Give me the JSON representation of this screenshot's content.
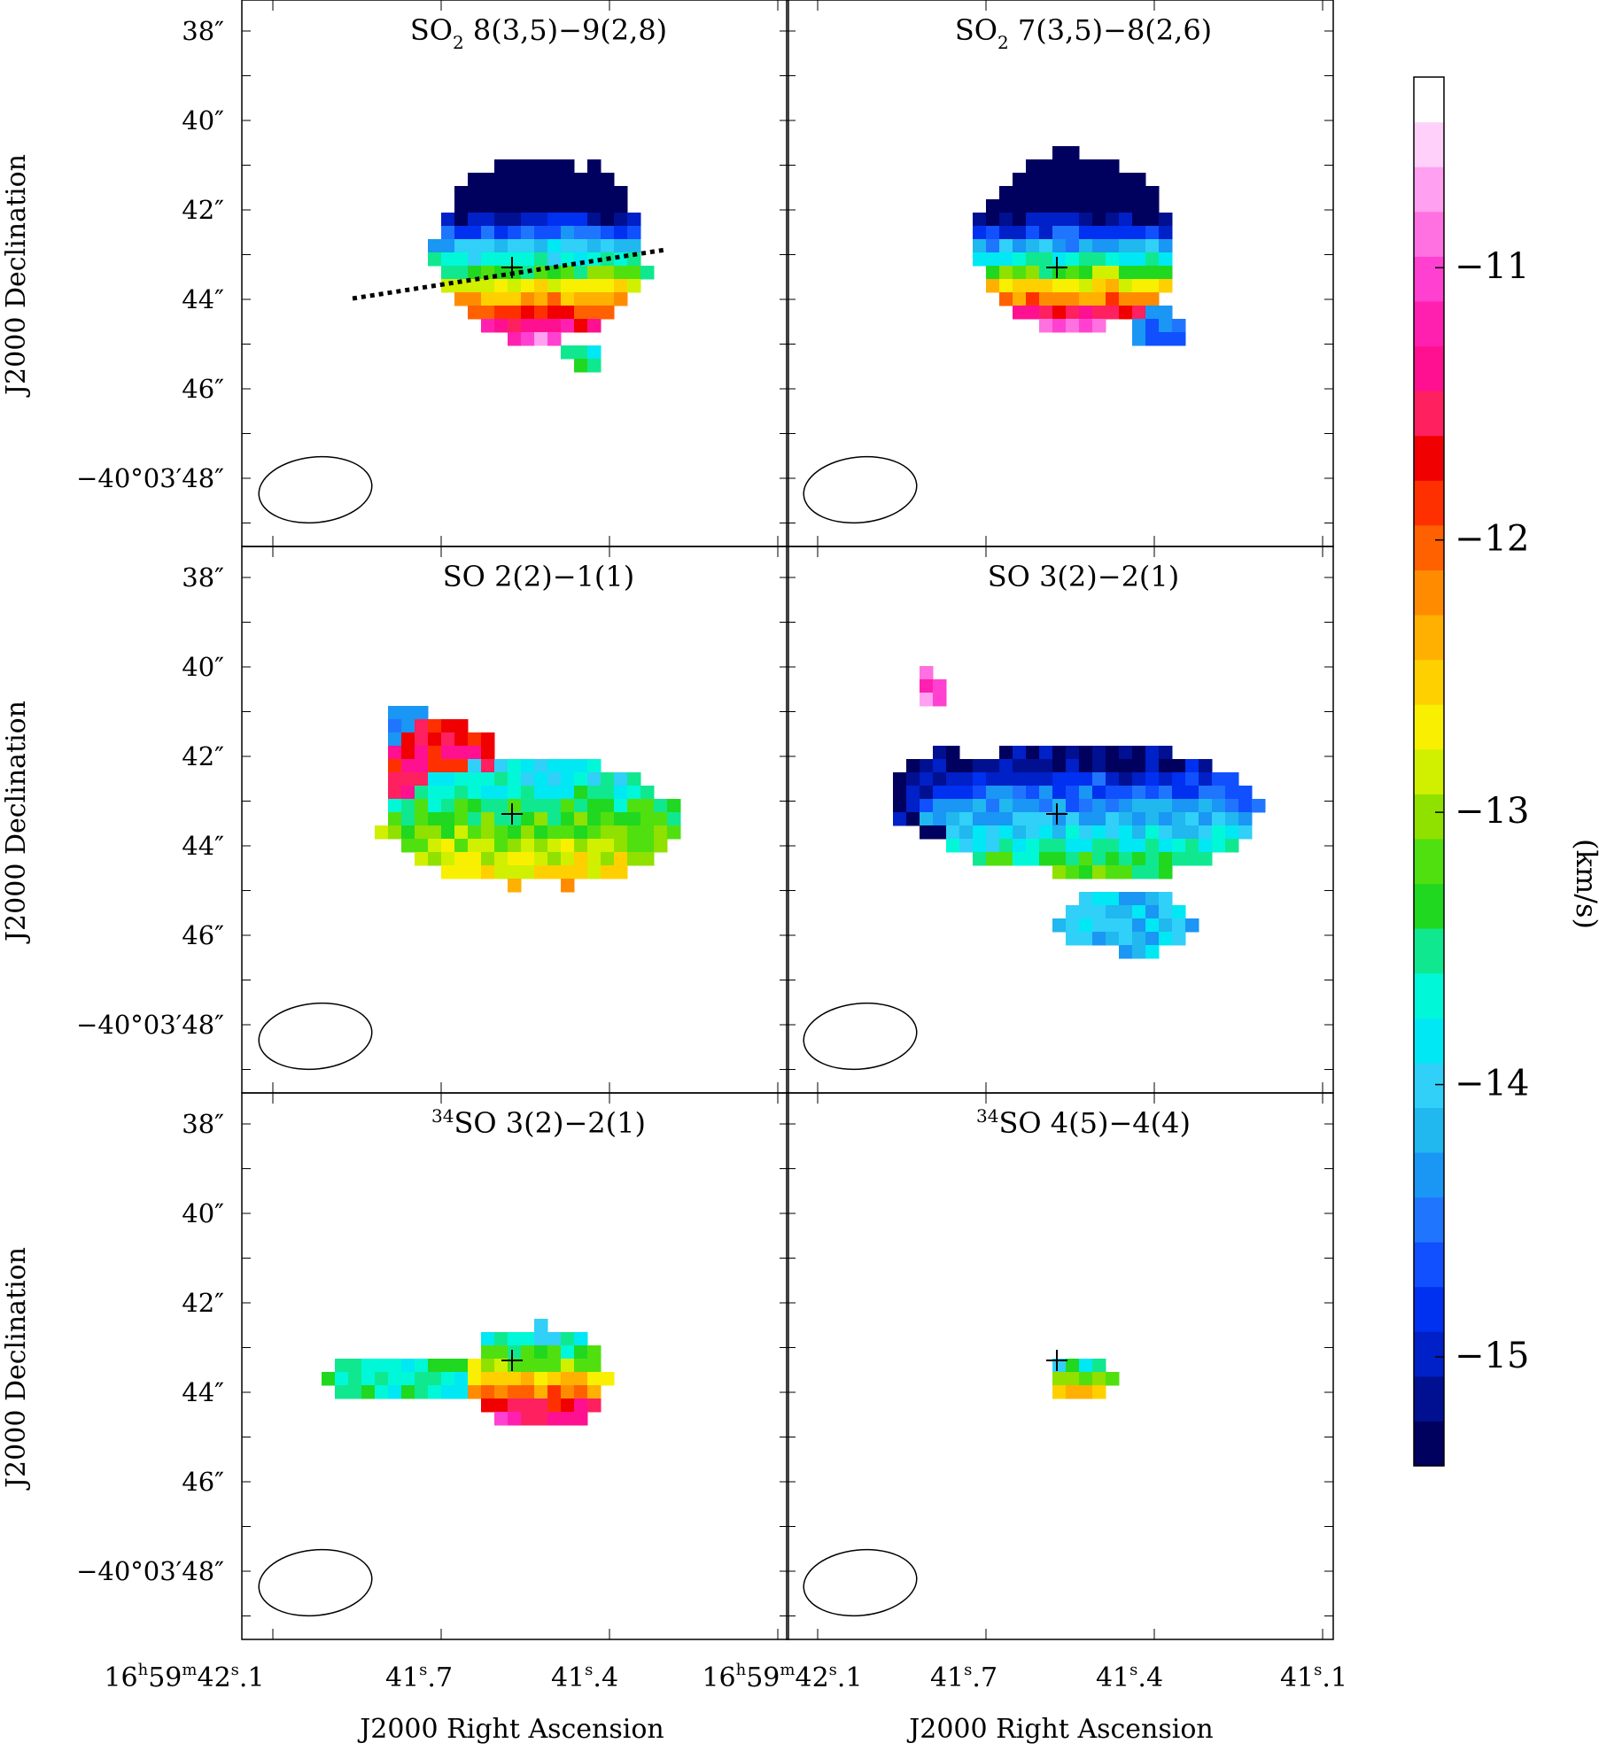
{
  "chart_data": {
    "type": "heatmap",
    "panels": [
      {
        "title_prefix": "",
        "title_sup": "",
        "title_main": "SO",
        "title_sub": "2",
        "title_rest": " 8(3,5)−9(2,8)",
        "has_cut_line": true,
        "blobs": [
          {
            "cx": 42.9,
            "cy": -0.45,
            "rx": 1.85,
            "ry": 2.1,
            "base_v": -14.0,
            "grad_v_per_arcsec": 1.4,
            "vy0": -0.45
          },
          {
            "cx": 45.3,
            "cy": -1.2,
            "rx": 0.45,
            "ry": 0.2,
            "base_v": -13.5,
            "grad_v_per_arcsec": 0.0,
            "vy0": -1.2
          }
        ]
      },
      {
        "title_prefix": "",
        "title_sup": "",
        "title_main": "SO",
        "title_sub": "2",
        "title_rest": " 7(3,5)−8(2,6)",
        "has_cut_line": false,
        "blobs": [
          {
            "cx": 42.7,
            "cy": -0.3,
            "rx": 1.75,
            "ry": 2.0,
            "base_v": -14.4,
            "grad_v_per_arcsec": 1.6,
            "vy0": -0.5
          },
          {
            "cx": 44.7,
            "cy": -1.8,
            "rx": 0.55,
            "ry": 0.45,
            "base_v": -14.5,
            "grad_v_per_arcsec": 0.0,
            "vy0": -1.8
          }
        ]
      },
      {
        "title_prefix": "",
        "title_sup": "",
        "title_main": "SO 2(2)−1(1)",
        "title_sub": "",
        "title_rest": "",
        "has_cut_line": false,
        "blobs": [
          {
            "cx": 43.5,
            "cy": -0.3,
            "rx": 2.6,
            "ry": 1.4,
            "base_v": -13.2,
            "grad_v_per_arcsec": 0.5,
            "vy0": -0.3
          },
          {
            "cx": 42.3,
            "cy": 1.2,
            "rx": 1.0,
            "ry": 1.1,
            "base_v": -11.6,
            "grad_v_per_arcsec": 0.0,
            "vy0": 1.2
          },
          {
            "cx": 41.4,
            "cy": 1.8,
            "rx": 0.45,
            "ry": 0.5,
            "base_v": -14.3,
            "grad_v_per_arcsec": 0.0,
            "vy0": 1.8
          }
        ]
      },
      {
        "title_prefix": "",
        "title_sup": "",
        "title_main": "SO 3(2)−2(1)",
        "title_sub": "",
        "title_rest": "",
        "has_cut_line": false,
        "blobs": [
          {
            "cx": 43.2,
            "cy": -0.6,
            "rx": 2.9,
            "ry": 1.5,
            "base_v": -14.3,
            "grad_v_per_arcsec": 0.7,
            "vy0": -0.6
          },
          {
            "cx": 45.7,
            "cy": -1.2,
            "rx": 1.2,
            "ry": 0.7,
            "base_v": -14.1,
            "grad_v_per_arcsec": 0.0,
            "vy0": -1.2
          },
          {
            "cx": 40.5,
            "cy": 2.2,
            "rx": 0.2,
            "ry": 0.45,
            "base_v": -11.0,
            "grad_v_per_arcsec": 0.0,
            "vy0": 2.2
          },
          {
            "cx": 42.9,
            "cy": 1.9,
            "rx": 1.0,
            "ry": 1.0,
            "base_v": -15.2,
            "grad_v_per_arcsec": 0.0,
            "vy0": 1.9
          },
          {
            "cx": 44.0,
            "cy": 0.0,
            "rx": 0.5,
            "ry": 0.6,
            "base_v": -11.5,
            "grad_v_per_arcsec": 0.0,
            "vy0": 0.0
          }
        ]
      },
      {
        "title_prefix": "",
        "title_sup": "34",
        "title_main": "SO 3(2)−2(1)",
        "title_sub": "",
        "title_rest": "",
        "has_cut_line": false,
        "blobs": [
          {
            "cx": 43.7,
            "cy": -0.4,
            "rx": 1.2,
            "ry": 1.2,
            "base_v": -12.5,
            "grad_v_per_arcsec": 1.3,
            "vy0": -0.6
          },
          {
            "cx": 43.7,
            "cy": 2.0,
            "rx": 1.4,
            "ry": 0.5,
            "base_v": -13.6,
            "grad_v_per_arcsec": 0.0,
            "vy0": 2.0
          }
        ]
      },
      {
        "title_prefix": "",
        "title_sup": "34",
        "title_main": "SO 4(5)−4(4)",
        "title_sub": "",
        "title_rest": "",
        "has_cut_line": false,
        "blobs": [
          {
            "cx": 43.7,
            "cy": -0.4,
            "rx": 0.6,
            "ry": 0.6,
            "base_v": -13.0,
            "grad_v_per_arcsec": 2.0,
            "vy0": -0.3
          }
        ]
      }
    ],
    "y_ticks": [
      "38″",
      "40″",
      "42″",
      "44″",
      "46″",
      "−40°03′48″"
    ],
    "x_ticks": [
      {
        "h": "16",
        "hsup": "h",
        "m": "59",
        "msup": "m",
        "s": "42",
        "ssup": "s",
        "frac": ".1"
      },
      {
        "h": "",
        "hsup": "",
        "m": "",
        "msup": "",
        "s": "41",
        "ssup": "s",
        "frac": ".7"
      },
      {
        "h": "",
        "hsup": "",
        "m": "",
        "msup": "",
        "s": "41",
        "ssup": "s",
        "frac": ".4"
      },
      {
        "h": "",
        "hsup": "",
        "m": "",
        "msup": "",
        "s": "41",
        "ssup": "s",
        "frac": ".1"
      }
    ],
    "xlabel": "J2000 Right Ascension",
    "ylabel": "J2000 Declination",
    "colorbar": {
      "label": "(km/s)",
      "vmin": -15.4,
      "vmax": -10.3,
      "ticks": [
        -11,
        -12,
        -13,
        -14,
        -15
      ],
      "tick_labels": [
        "−11",
        "−12",
        "−13",
        "−14",
        "−15"
      ],
      "colors": [
        "#00005f",
        "#001090",
        "#0020c8",
        "#0030f0",
        "#1050ff",
        "#2075ff",
        "#1a96f5",
        "#20b8ee",
        "#30d0f8",
        "#00e8f4",
        "#00f8d8",
        "#10e890",
        "#20d820",
        "#50e010",
        "#90e000",
        "#d0f000",
        "#f8f000",
        "#ffd000",
        "#ffb000",
        "#ff8c00",
        "#ff6000",
        "#ff3000",
        "#f00000",
        "#ff2060",
        "#ff1090",
        "#ff20b0",
        "#ff40d0",
        "#ff70e0",
        "#ffa0f0",
        "#ffd0fa",
        "#ffffff"
      ]
    }
  }
}
